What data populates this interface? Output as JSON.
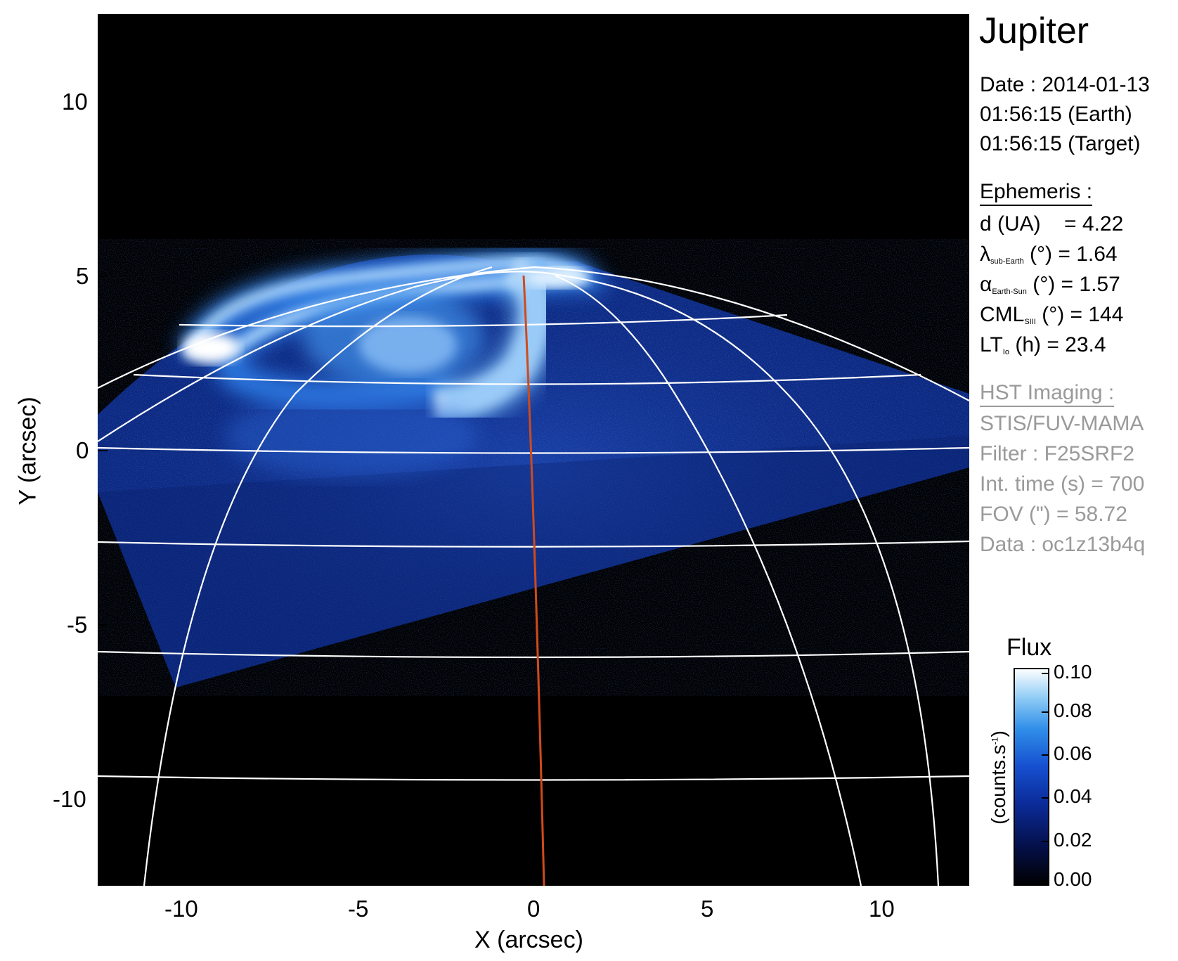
{
  "title": "Jupiter",
  "info": {
    "date": "Date : 2014-01-13",
    "time_earth": "01:56:15 (Earth)",
    "time_target": "01:56:15 (Target)",
    "ephemeris_header": "Ephemeris :",
    "d_label": "d (UA)",
    "d_value": "= 4.22",
    "lat_symbol": "λ",
    "lat_sub": "sub-Earth",
    "lat_value": "(°) = 1.64",
    "alpha_symbol": "α",
    "alpha_sub": "Earth-Sun",
    "alpha_value": "(°) = 1.57",
    "cml_label": "CML",
    "cml_sub": "SIII",
    "cml_value": "(°) = 144",
    "lt_label": "LT",
    "lt_sub": "Io",
    "lt_value": "(h) = 23.4",
    "hst_header": "HST Imaging :",
    "instrument": "STIS/FUV-MAMA",
    "filter": "Filter : F25SRF2",
    "int_time": "Int. time (s) = 700",
    "fov": "FOV (\") = 58.72",
    "dataset": "Data : oc1z13b4q"
  },
  "axes": {
    "xlabel": "X (arcsec)",
    "ylabel": "Y (arcsec)",
    "xticks": [
      "-10",
      "-5",
      "0",
      "5",
      "10"
    ],
    "yticks": [
      "10",
      "5",
      "0",
      "-5",
      "-10"
    ]
  },
  "colorbar": {
    "title": "Flux",
    "unit": "(counts.s",
    "unit_sup": "-1",
    "unit_close": ")",
    "ticks": [
      "0.10",
      "0.08",
      "0.06",
      "0.04",
      "0.02",
      "0.00"
    ]
  },
  "colors": {
    "background": "#000000",
    "emission_low": "#0a1a6e",
    "emission_high": "#ffffff",
    "grid": "#ffffff",
    "meridian": "#d04a1a",
    "muted_text": "#9a9a9a"
  }
}
